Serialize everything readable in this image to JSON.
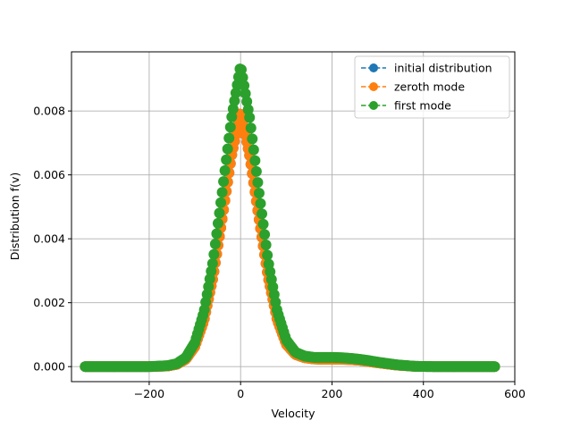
{
  "chart_data": {
    "type": "line",
    "title": "",
    "xlabel": "Velocity",
    "ylabel": "Distribution f(v)",
    "xlim": [
      -370,
      600
    ],
    "ylim": [
      -0.00047,
      0.00985
    ],
    "xticks": [
      -200,
      0,
      200,
      400,
      600
    ],
    "xtick_labels": [
      "−200",
      "0",
      "200",
      "400",
      "600"
    ],
    "yticks": [
      0.0,
      0.002,
      0.004,
      0.006,
      0.008
    ],
    "ytick_labels": [
      "0.000",
      "0.002",
      "0.004",
      "0.006",
      "0.008"
    ],
    "grid": true,
    "legend_position": "top-right",
    "x_range": [
      -340,
      556
    ],
    "series": [
      {
        "name": "initial distribution",
        "color": "#1f77b4",
        "linestyle": "dashed",
        "marker": "circle",
        "x": [
          -340,
          -200,
          -160,
          -140,
          -120,
          -100,
          -80,
          -60,
          -40,
          -20,
          0,
          20,
          40,
          60,
          80,
          100,
          120,
          140,
          160,
          180,
          200,
          220,
          240,
          260,
          280,
          300,
          340,
          380,
          420,
          460,
          500,
          556
        ],
        "values": [
          0.0,
          0.0,
          2e-05,
          7e-05,
          0.00023,
          0.00063,
          0.00145,
          0.00282,
          0.00465,
          0.00658,
          0.008,
          0.00658,
          0.00465,
          0.00282,
          0.00147,
          0.0007,
          0.00038,
          0.00028,
          0.00024,
          0.00023,
          0.00023,
          0.00023,
          0.00022,
          0.0002,
          0.00016,
          0.00012,
          5e-05,
          1e-05,
          0.0,
          0.0,
          0.0,
          0.0
        ]
      },
      {
        "name": "zeroth mode",
        "color": "#ff7f0e",
        "linestyle": "dashed",
        "marker": "circle",
        "x": [
          -340,
          -200,
          -160,
          -140,
          -120,
          -100,
          -80,
          -60,
          -40,
          -20,
          0,
          20,
          40,
          60,
          80,
          100,
          120,
          140,
          160,
          180,
          200,
          220,
          240,
          260,
          280,
          300,
          340,
          380,
          420,
          460,
          500,
          556
        ],
        "values": [
          0.0,
          0.0,
          2e-05,
          7e-05,
          0.00023,
          0.00063,
          0.00145,
          0.00282,
          0.00465,
          0.00658,
          0.008,
          0.00658,
          0.00465,
          0.00282,
          0.00147,
          0.0007,
          0.00038,
          0.00028,
          0.00024,
          0.00023,
          0.00023,
          0.00023,
          0.00022,
          0.0002,
          0.00016,
          0.00012,
          5e-05,
          1e-05,
          0.0,
          0.0,
          0.0,
          0.0
        ]
      },
      {
        "name": "first mode",
        "color": "#2ca02c",
        "linestyle": "dashed",
        "marker": "circle",
        "x": [
          -340,
          -200,
          -160,
          -140,
          -120,
          -100,
          -80,
          -60,
          -40,
          -20,
          0,
          20,
          40,
          60,
          80,
          100,
          120,
          140,
          160,
          180,
          200,
          220,
          240,
          260,
          280,
          300,
          340,
          380,
          420,
          460,
          500,
          556
        ],
        "values": [
          0.0,
          0.0,
          3e-05,
          9e-05,
          0.00028,
          0.00075,
          0.00172,
          0.00333,
          0.00549,
          0.00776,
          0.00943,
          0.00776,
          0.00549,
          0.00333,
          0.00174,
          0.00083,
          0.00045,
          0.00033,
          0.00029,
          0.00029,
          0.00029,
          0.00028,
          0.00026,
          0.00023,
          0.00019,
          0.00014,
          6e-05,
          1e-05,
          0.0,
          0.0,
          0.0,
          0.0
        ]
      }
    ]
  }
}
